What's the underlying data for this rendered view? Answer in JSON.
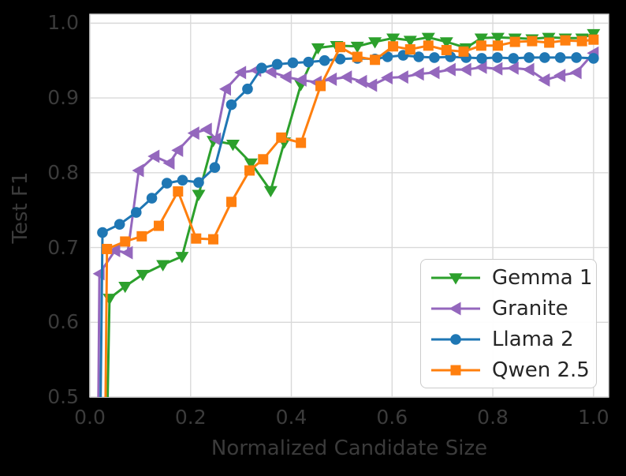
{
  "figure": {
    "background": "#000000",
    "plot_background": "#ffffff",
    "grid_color": "#d9d9d9",
    "border_color": "#d4d4d4",
    "tick_text_color": "#3b3b3b",
    "legend_text_color": "#262626"
  },
  "chart_data": {
    "type": "line",
    "title": "",
    "xlabel": "Normalized Candidate Size",
    "ylabel": "Test F1",
    "xlim": [
      0,
      1.03
    ],
    "ylim": [
      0.5,
      1.012
    ],
    "grid": true,
    "legend_position": "lower right",
    "xticks": [
      {
        "value": 0.0,
        "label": "0.0"
      },
      {
        "value": 0.2,
        "label": "0.2"
      },
      {
        "value": 0.4,
        "label": "0.4"
      },
      {
        "value": 0.6,
        "label": "0.6"
      },
      {
        "value": 0.8,
        "label": "0.8"
      },
      {
        "value": 1.0,
        "label": "1.0"
      }
    ],
    "yticks": [
      {
        "value": 0.5,
        "label": "0.5"
      },
      {
        "value": 0.6,
        "label": "0.6"
      },
      {
        "value": 0.7,
        "label": "0.7"
      },
      {
        "value": 0.8,
        "label": "0.8"
      },
      {
        "value": 0.9,
        "label": "0.9"
      },
      {
        "value": 1.0,
        "label": "1.0"
      }
    ],
    "series": [
      {
        "name": "Gemma 1",
        "color": "#2ca02c",
        "marker": "triangle-down",
        "x": [
          0.033,
          0.039,
          0.07,
          0.105,
          0.145,
          0.183,
          0.216,
          0.245,
          0.284,
          0.32,
          0.359,
          0.386,
          0.419,
          0.453,
          0.49,
          0.531,
          0.566,
          0.602,
          0.636,
          0.672,
          0.708,
          0.747,
          0.777,
          0.81,
          0.844,
          0.878,
          0.911,
          0.944,
          0.977,
          1.0
        ],
        "y": [
          0.42,
          0.632,
          0.648,
          0.664,
          0.677,
          0.688,
          0.771,
          0.843,
          0.838,
          0.813,
          0.776,
          0.841,
          0.918,
          0.967,
          0.97,
          0.969,
          0.975,
          0.98,
          0.977,
          0.981,
          0.975,
          0.967,
          0.98,
          0.981,
          0.98,
          0.979,
          0.981,
          0.98,
          0.98,
          0.986
        ]
      },
      {
        "name": "Granite",
        "color": "#9467bd",
        "marker": "triangle-left",
        "x": [
          0.016,
          0.019,
          0.05,
          0.075,
          0.097,
          0.128,
          0.158,
          0.175,
          0.207,
          0.232,
          0.25,
          0.27,
          0.3,
          0.33,
          0.36,
          0.39,
          0.42,
          0.45,
          0.48,
          0.51,
          0.54,
          0.56,
          0.591,
          0.622,
          0.653,
          0.684,
          0.716,
          0.747,
          0.778,
          0.809,
          0.841,
          0.872,
          0.903,
          0.934,
          0.966,
          1.0
        ],
        "y": [
          0.42,
          0.665,
          0.696,
          0.693,
          0.803,
          0.822,
          0.813,
          0.83,
          0.853,
          0.858,
          0.845,
          0.912,
          0.934,
          0.937,
          0.935,
          0.928,
          0.924,
          0.921,
          0.925,
          0.928,
          0.922,
          0.917,
          0.927,
          0.928,
          0.932,
          0.934,
          0.938,
          0.938,
          0.941,
          0.939,
          0.94,
          0.938,
          0.924,
          0.93,
          0.934,
          0.96
        ]
      },
      {
        "name": "Llama 2",
        "color": "#1f77b4",
        "marker": "circle",
        "x": [
          0.02,
          0.025,
          0.059,
          0.092,
          0.123,
          0.153,
          0.184,
          0.216,
          0.248,
          0.281,
          0.313,
          0.341,
          0.372,
          0.403,
          0.434,
          0.466,
          0.497,
          0.531,
          0.566,
          0.591,
          0.622,
          0.653,
          0.684,
          0.716,
          0.747,
          0.778,
          0.809,
          0.841,
          0.872,
          0.903,
          0.934,
          0.966,
          1.0
        ],
        "y": [
          0.42,
          0.72,
          0.731,
          0.747,
          0.766,
          0.786,
          0.79,
          0.787,
          0.807,
          0.891,
          0.912,
          0.94,
          0.945,
          0.947,
          0.948,
          0.95,
          0.952,
          0.953,
          0.952,
          0.955,
          0.957,
          0.955,
          0.954,
          0.955,
          0.954,
          0.953,
          0.954,
          0.953,
          0.954,
          0.954,
          0.954,
          0.954,
          0.953
        ]
      },
      {
        "name": "Qwen 2.5",
        "color": "#ff7f0e",
        "marker": "square",
        "x": [
          0.03,
          0.034,
          0.07,
          0.103,
          0.137,
          0.175,
          0.211,
          0.245,
          0.281,
          0.317,
          0.344,
          0.38,
          0.419,
          0.458,
          0.497,
          0.531,
          0.566,
          0.602,
          0.636,
          0.672,
          0.708,
          0.742,
          0.777,
          0.81,
          0.844,
          0.878,
          0.912,
          0.944,
          0.977,
          1.0
        ],
        "y": [
          0.42,
          0.698,
          0.708,
          0.715,
          0.729,
          0.775,
          0.712,
          0.711,
          0.761,
          0.803,
          0.818,
          0.847,
          0.84,
          0.916,
          0.968,
          0.955,
          0.951,
          0.969,
          0.965,
          0.97,
          0.964,
          0.962,
          0.97,
          0.97,
          0.975,
          0.976,
          0.974,
          0.977,
          0.976,
          0.978
        ]
      }
    ]
  }
}
